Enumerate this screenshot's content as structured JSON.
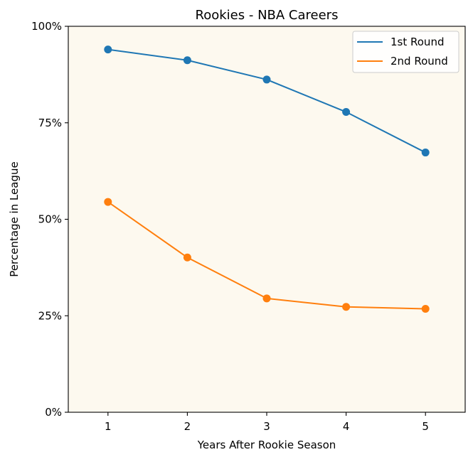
{
  "chart_data": {
    "type": "line",
    "title": "Rookies - NBA Careers",
    "xlabel": "Years After Rookie Season",
    "ylabel": "Percentage in League",
    "x": [
      1,
      2,
      3,
      4,
      5
    ],
    "x_tick_labels": [
      "1",
      "2",
      "3",
      "4",
      "5"
    ],
    "y_ticks": [
      0,
      25,
      50,
      75,
      100
    ],
    "y_tick_labels": [
      "0%",
      "25%",
      "50%",
      "75%",
      "100%"
    ],
    "xlim": [
      0.5,
      5.5
    ],
    "ylim": [
      0,
      100
    ],
    "grid": false,
    "legend_position": "top-right",
    "plot_background": "#fdf9ef",
    "series": [
      {
        "name": "1st Round",
        "color": "#1f77b4",
        "values": [
          94.0,
          91.2,
          86.2,
          77.8,
          67.3
        ]
      },
      {
        "name": "2nd Round",
        "color": "#ff7f0e",
        "values": [
          54.5,
          40.1,
          29.5,
          27.3,
          26.8
        ]
      }
    ]
  }
}
